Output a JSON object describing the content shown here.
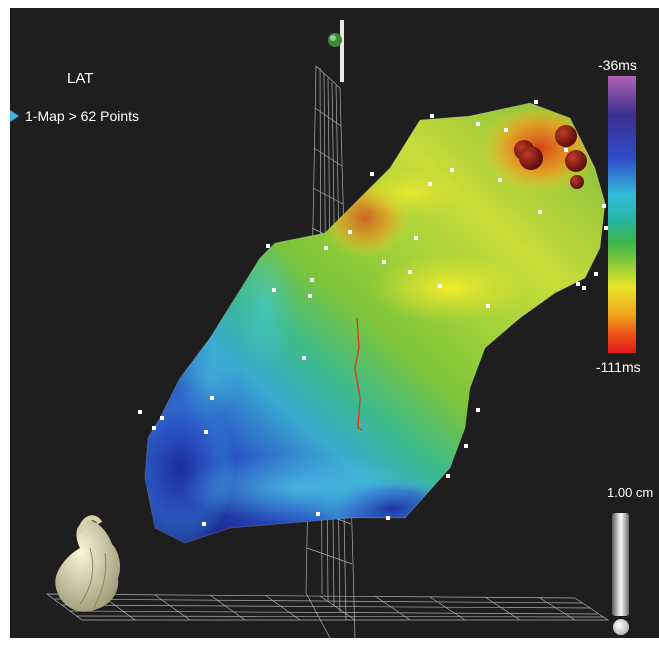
{
  "legend": {
    "map_type": "LAT",
    "map_selector": "1-Map > 62 Points",
    "max_label": "-36ms",
    "min_label": "-111ms"
  },
  "scale": {
    "label": "1.00 cm"
  },
  "colors": {
    "background": "#1e1e1e",
    "selector_accent": "#3fb0e0",
    "early_activation": "#e0181b",
    "late_activation": "#b063b3"
  },
  "icons": [
    "heart-orientation-icon",
    "catheter-icon",
    "scale-knob-icon"
  ]
}
